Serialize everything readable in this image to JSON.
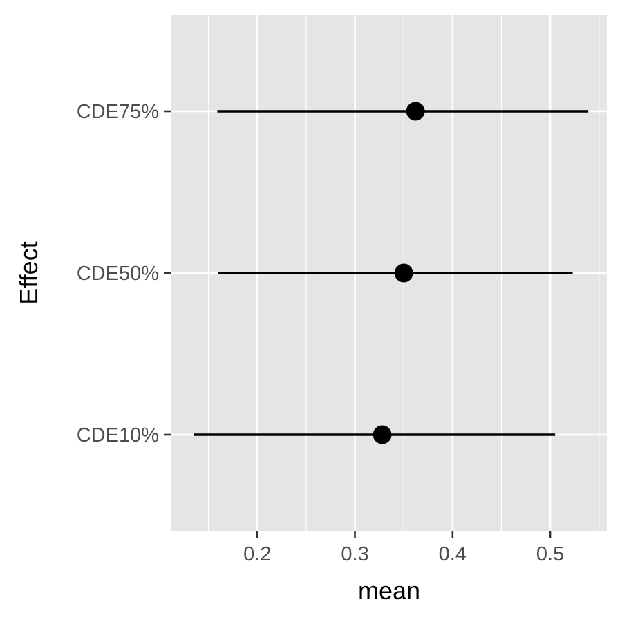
{
  "chart_data": {
    "type": "forest",
    "title": "",
    "xlabel": "mean",
    "ylabel": "Effect",
    "xlim": [
      0.112,
      0.558
    ],
    "x_ticks": [
      0.2,
      0.3,
      0.4,
      0.5
    ],
    "x_tick_labels": [
      "0.2",
      "0.3",
      "0.4",
      "0.5"
    ],
    "x_minor_ticks": [
      0.15,
      0.25,
      0.35,
      0.45,
      0.55
    ],
    "categories": [
      "CDE10%",
      "CDE50%",
      "CDE75%"
    ],
    "points": [
      {
        "category": "CDE10%",
        "mean": 0.328,
        "lower": 0.135,
        "upper": 0.505
      },
      {
        "category": "CDE50%",
        "mean": 0.35,
        "lower": 0.16,
        "upper": 0.523
      },
      {
        "category": "CDE75%",
        "mean": 0.362,
        "lower": 0.159,
        "upper": 0.539
      }
    ],
    "grid": true,
    "colors": {
      "panel": "#e5e5e5",
      "grid": "#ffffff",
      "marks": "#000000",
      "tick_label": "#4d4d4d"
    }
  }
}
